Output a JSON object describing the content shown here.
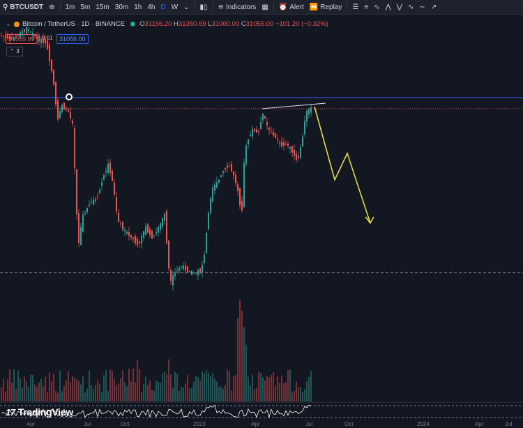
{
  "toolbar": {
    "symbol": "BTCUSDT",
    "intervals": [
      "1m",
      "5m",
      "15m",
      "30m",
      "1h",
      "4h",
      "D",
      "W"
    ],
    "active_interval": "D",
    "indicators_label": "Indicators",
    "alert_label": "Alert",
    "replay_label": "Replay"
  },
  "legend": {
    "title": "Bitcoin / TetherUS · 1D · BINANCE",
    "open_key": "O",
    "open": "31156.20",
    "high_key": "H",
    "high": "31350.69",
    "low_key": "L",
    "low": "31000.00",
    "close_key": "C",
    "close": "31055.00",
    "change": "−101.20 (−0.32%)"
  },
  "price_boxes": {
    "sell": "31055.99",
    "spread": "0.01",
    "buy": "31056.00"
  },
  "collapse_count": "3",
  "brand": "TradingView",
  "time_axis": [
    "Apr",
    "Jul",
    "Oct",
    "2023",
    "Apr",
    "Jul",
    "Oct",
    "2024",
    "Apr",
    "Jul"
  ],
  "colors": {
    "background": "#131722",
    "up": "#26a69a",
    "down": "#ef5350",
    "horizontal_line": "#2962ff",
    "projection": "#f0e442"
  }
}
